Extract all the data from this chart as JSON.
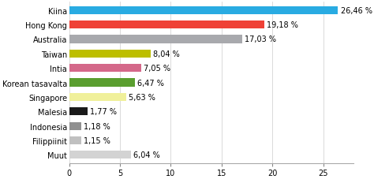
{
  "categories": [
    "Kiina",
    "Hong Kong",
    "Australia",
    "Taiwan",
    "Intia",
    "Korean tasavalta",
    "Singapore",
    "Malesia",
    "Indonesia",
    "Filippiinit",
    "Muut"
  ],
  "values": [
    26.46,
    19.18,
    17.03,
    8.04,
    7.05,
    6.47,
    5.63,
    1.77,
    1.18,
    1.15,
    6.04
  ],
  "labels": [
    "26,46 %",
    "19,18 %",
    "17,03 %",
    "8,04 %",
    "7,05 %",
    "6,47 %",
    "5,63 %",
    "1,77 %",
    "1,18 %",
    "1,15 %",
    "6,04 %"
  ],
  "colors": [
    "#29ABE2",
    "#EF4136",
    "#A8A9AD",
    "#BDBE00",
    "#D4688A",
    "#5A9E2F",
    "#F0F09A",
    "#1A1A1A",
    "#909090",
    "#C0C0C0",
    "#D3D3D3"
  ],
  "xlim": [
    0,
    28
  ],
  "xticks": [
    0,
    5,
    10,
    15,
    20,
    25
  ],
  "background_color": "#ffffff",
  "bar_height": 0.55,
  "fontsize_labels": 7.0,
  "fontsize_ticks": 7.0,
  "figsize": [
    4.74,
    2.28
  ],
  "dpi": 100
}
